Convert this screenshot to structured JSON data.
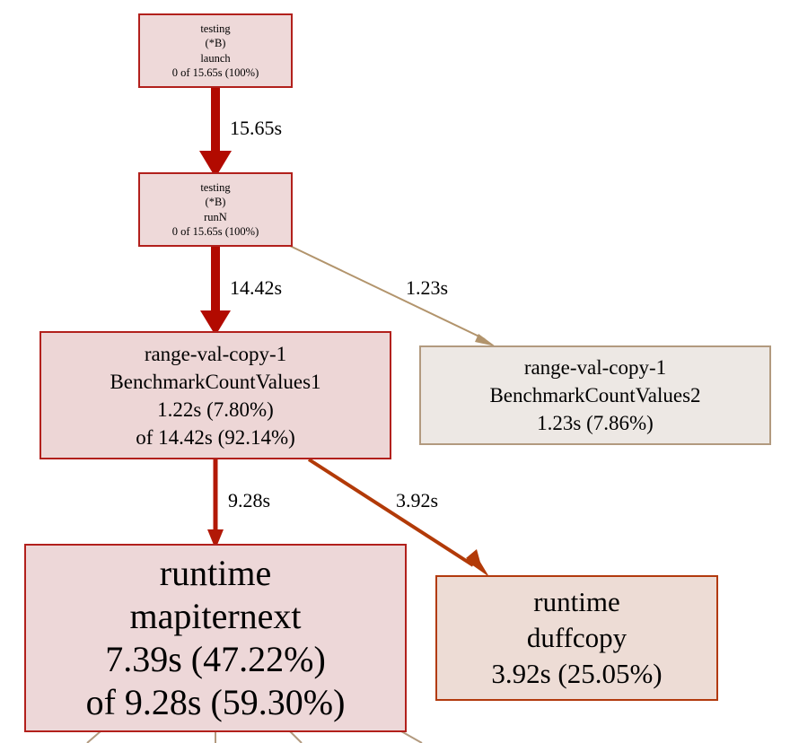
{
  "nodes": [
    {
      "id": "launch",
      "lines": [
        "testing",
        "(*B)",
        "launch",
        "0 of 15.65s (100%)"
      ],
      "fill": "#eed9d9",
      "stroke": "#b2201c"
    },
    {
      "id": "runN",
      "lines": [
        "testing",
        "(*B)",
        "runN",
        "0 of 15.65s (100%)"
      ],
      "fill": "#eed9d9",
      "stroke": "#b2201c"
    },
    {
      "id": "countvalues1",
      "lines": [
        "range-val-copy-1",
        "BenchmarkCountValues1",
        "1.22s (7.80%)",
        "of 14.42s (92.14%)"
      ],
      "fill": "#edd6d6",
      "stroke": "#b2201c"
    },
    {
      "id": "countvalues2",
      "lines": [
        "range-val-copy-1",
        "BenchmarkCountValues2",
        "1.23s (7.86%)"
      ],
      "fill": "#ede8e4",
      "stroke": "#b29a7f"
    },
    {
      "id": "mapiternext",
      "lines": [
        "runtime",
        "mapiternext",
        "7.39s (47.22%)",
        "of 9.28s (59.30%)"
      ],
      "fill": "#edd7d8",
      "stroke": "#b2201c"
    },
    {
      "id": "duffcopy",
      "lines": [
        "runtime",
        "duffcopy",
        "3.92s (25.05%)"
      ],
      "fill": "#eddcd5",
      "stroke": "#b23a0d"
    }
  ],
  "edges": [
    {
      "id": "launch-runN",
      "label": "15.65s",
      "color": "#b20a00"
    },
    {
      "id": "runN-countvalues1",
      "label": "14.42s",
      "color": "#b20a00"
    },
    {
      "id": "runN-countvalues2",
      "label": "1.23s",
      "color": "#b2946c"
    },
    {
      "id": "countvalues1-mapiternext",
      "label": "9.28s",
      "color": "#b21907"
    },
    {
      "id": "countvalues1-duffcopy",
      "label": "3.92s",
      "color": "#b23a08"
    }
  ]
}
